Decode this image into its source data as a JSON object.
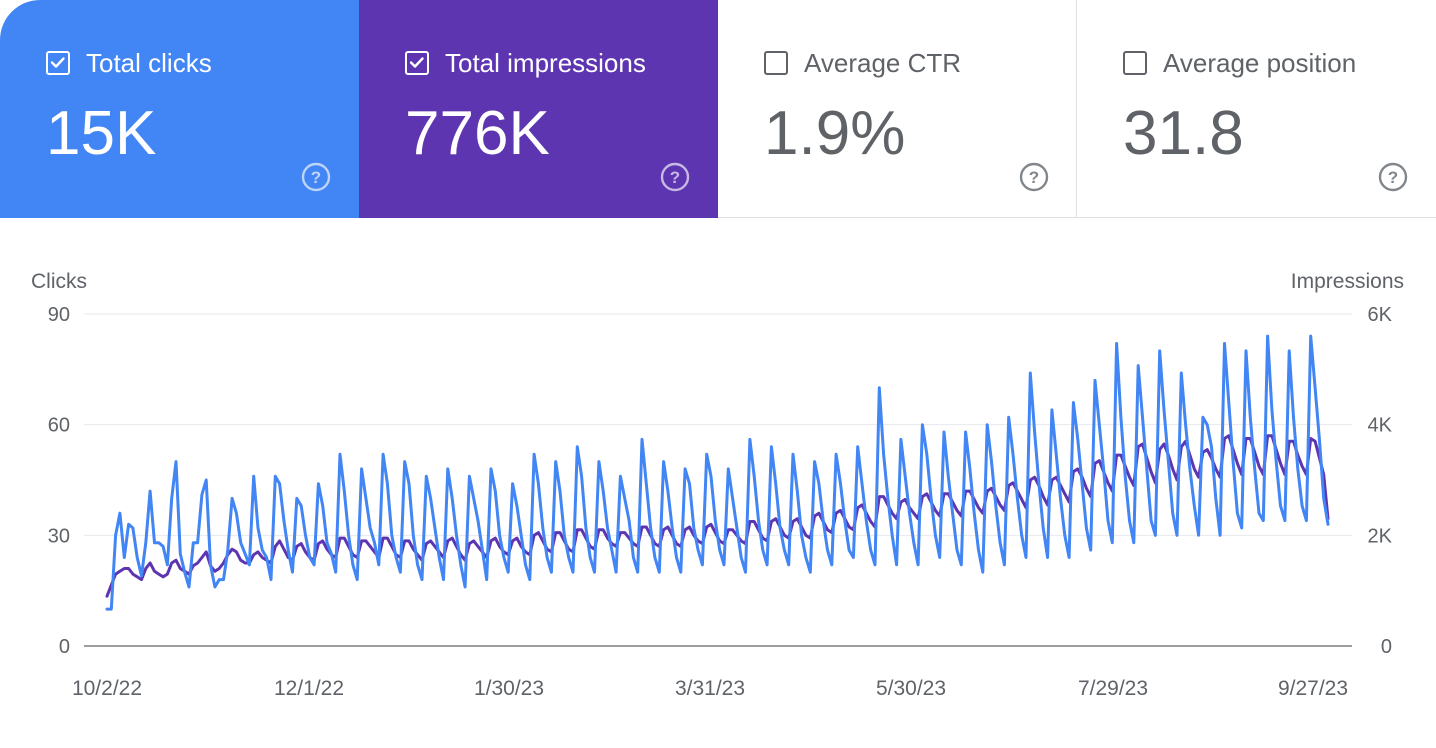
{
  "metrics": [
    {
      "label": "Total clicks",
      "value": "15K",
      "checked": true
    },
    {
      "label": "Total impressions",
      "value": "776K",
      "checked": true
    },
    {
      "label": "Average CTR",
      "value": "1.9%",
      "checked": false
    },
    {
      "label": "Average position",
      "value": "31.8",
      "checked": false
    }
  ],
  "colors": {
    "clicks": "#4285f4",
    "impressions": "#5e35b1",
    "neutral": "#5f6368"
  },
  "icons": {
    "checkbox": "checkbox-icon",
    "help": "help-circle-icon"
  },
  "chart_data": {
    "type": "line",
    "title": "",
    "left_axis_title": "Clicks",
    "right_axis_title": "Impressions",
    "left_ticks": [
      "90",
      "60",
      "30",
      "0"
    ],
    "right_ticks": [
      "6K",
      "4K",
      "2K",
      "0"
    ],
    "ylim_left": [
      0,
      90
    ],
    "ylim_right": [
      0,
      6000
    ],
    "x_tick_labels": [
      "10/2/22",
      "12/1/22",
      "1/30/23",
      "3/31/23",
      "5/30/23",
      "7/29/23",
      "9/27/23"
    ],
    "x_range_days": [
      0,
      361
    ],
    "grid": true,
    "series": [
      {
        "name": "Clicks",
        "axis": "left",
        "color": "#4285f4",
        "values": [
          10,
          10,
          30,
          36,
          24,
          33,
          32,
          24,
          19,
          28,
          42,
          28,
          28,
          27,
          22,
          40,
          50,
          25,
          20,
          16,
          28,
          28,
          41,
          45,
          22,
          16,
          18,
          18,
          26,
          40,
          36,
          28,
          25,
          22,
          46,
          32,
          26,
          24,
          18,
          46,
          44,
          34,
          26,
          20,
          40,
          38,
          30,
          24,
          22,
          44,
          38,
          28,
          25,
          20,
          52,
          42,
          30,
          22,
          18,
          48,
          40,
          32,
          28,
          22,
          52,
          44,
          30,
          24,
          20,
          50,
          44,
          30,
          22,
          18,
          46,
          40,
          32,
          24,
          18,
          48,
          40,
          30,
          22,
          16,
          46,
          40,
          34,
          26,
          18,
          48,
          42,
          30,
          24,
          20,
          44,
          38,
          30,
          22,
          18,
          52,
          44,
          32,
          24,
          20,
          50,
          42,
          30,
          24,
          20,
          54,
          46,
          32,
          24,
          20,
          50,
          42,
          32,
          26,
          20,
          46,
          40,
          34,
          24,
          20,
          56,
          44,
          32,
          24,
          20,
          50,
          42,
          32,
          24,
          20,
          48,
          44,
          32,
          26,
          22,
          52,
          46,
          34,
          26,
          22,
          48,
          40,
          32,
          24,
          20,
          56,
          46,
          34,
          26,
          22,
          54,
          44,
          32,
          26,
          22,
          52,
          42,
          30,
          24,
          20,
          50,
          44,
          34,
          26,
          22,
          52,
          44,
          34,
          26,
          24,
          54,
          44,
          34,
          26,
          22,
          70,
          52,
          40,
          30,
          22,
          56,
          46,
          36,
          28,
          22,
          60,
          52,
          40,
          30,
          24,
          58,
          46,
          36,
          26,
          22,
          58,
          48,
          36,
          26,
          20,
          60,
          50,
          38,
          28,
          22,
          62,
          52,
          40,
          30,
          24,
          74,
          58,
          44,
          32,
          24,
          64,
          52,
          40,
          30,
          24,
          66,
          56,
          44,
          32,
          26,
          72,
          60,
          48,
          34,
          28,
          82,
          62,
          46,
          34,
          28,
          76,
          62,
          48,
          34,
          30,
          80,
          64,
          50,
          36,
          30,
          74,
          60,
          48,
          38,
          30,
          62,
          60,
          54,
          40,
          30,
          82,
          66,
          50,
          36,
          32,
          80,
          62,
          48,
          36,
          34,
          84,
          64,
          50,
          38,
          34,
          80,
          62,
          48,
          38,
          34,
          84,
          70,
          56,
          40,
          33
        ]
      },
      {
        "name": "Impressions",
        "axis": "right",
        "color": "#5e35b1",
        "values": [
          900,
          1100,
          1300,
          1350,
          1400,
          1400,
          1300,
          1250,
          1200,
          1400,
          1500,
          1350,
          1300,
          1250,
          1300,
          1500,
          1550,
          1400,
          1350,
          1300,
          1450,
          1500,
          1600,
          1700,
          1450,
          1350,
          1400,
          1500,
          1650,
          1750,
          1700,
          1550,
          1500,
          1500,
          1650,
          1700,
          1600,
          1550,
          1500,
          1800,
          1900,
          1750,
          1600,
          1550,
          1800,
          1850,
          1700,
          1600,
          1550,
          1850,
          1900,
          1750,
          1650,
          1600,
          1950,
          1950,
          1800,
          1650,
          1600,
          1900,
          1900,
          1800,
          1700,
          1600,
          1950,
          1950,
          1800,
          1650,
          1600,
          1900,
          1900,
          1750,
          1650,
          1550,
          1850,
          1900,
          1800,
          1700,
          1600,
          1900,
          1950,
          1800,
          1650,
          1550,
          1850,
          1900,
          1800,
          1700,
          1600,
          1900,
          1950,
          1800,
          1700,
          1650,
          1900,
          1950,
          1800,
          1700,
          1650,
          2000,
          2050,
          1900,
          1750,
          1700,
          2050,
          2050,
          1900,
          1750,
          1700,
          2100,
          2100,
          1950,
          1800,
          1750,
          2100,
          2100,
          1950,
          1850,
          1800,
          2050,
          2050,
          1950,
          1850,
          1800,
          2150,
          2150,
          2000,
          1850,
          1800,
          2100,
          2150,
          2000,
          1850,
          1800,
          2100,
          2150,
          2000,
          1900,
          1850,
          2150,
          2200,
          2050,
          1900,
          1850,
          2100,
          2100,
          2000,
          1900,
          1850,
          2250,
          2250,
          2100,
          1950,
          1900,
          2250,
          2300,
          2150,
          2000,
          1950,
          2250,
          2300,
          2150,
          2000,
          1950,
          2350,
          2400,
          2250,
          2100,
          2050,
          2400,
          2450,
          2300,
          2150,
          2100,
          2500,
          2550,
          2400,
          2250,
          2150,
          2700,
          2700,
          2550,
          2400,
          2300,
          2600,
          2650,
          2500,
          2400,
          2300,
          2700,
          2750,
          2600,
          2450,
          2350,
          2750,
          2750,
          2600,
          2450,
          2350,
          2800,
          2800,
          2650,
          2500,
          2400,
          2800,
          2850,
          2700,
          2550,
          2450,
          2900,
          2950,
          2800,
          2650,
          2500,
          3000,
          3050,
          2900,
          2700,
          2550,
          3000,
          3050,
          2900,
          2750,
          2600,
          3150,
          3200,
          3050,
          2850,
          2700,
          3300,
          3350,
          3150,
          2950,
          2800,
          3450,
          3450,
          3250,
          3050,
          2900,
          3600,
          3650,
          3400,
          3150,
          2950,
          3550,
          3650,
          3450,
          3200,
          3000,
          3600,
          3700,
          3450,
          3200,
          3050,
          3500,
          3550,
          3400,
          3200,
          3050,
          3750,
          3800,
          3550,
          3300,
          3100,
          3750,
          3750,
          3500,
          3250,
          3100,
          3800,
          3800,
          3550,
          3300,
          3100,
          3700,
          3700,
          3450,
          3250,
          3100,
          3750,
          3700,
          3400,
          3100,
          2300
        ]
      }
    ]
  }
}
